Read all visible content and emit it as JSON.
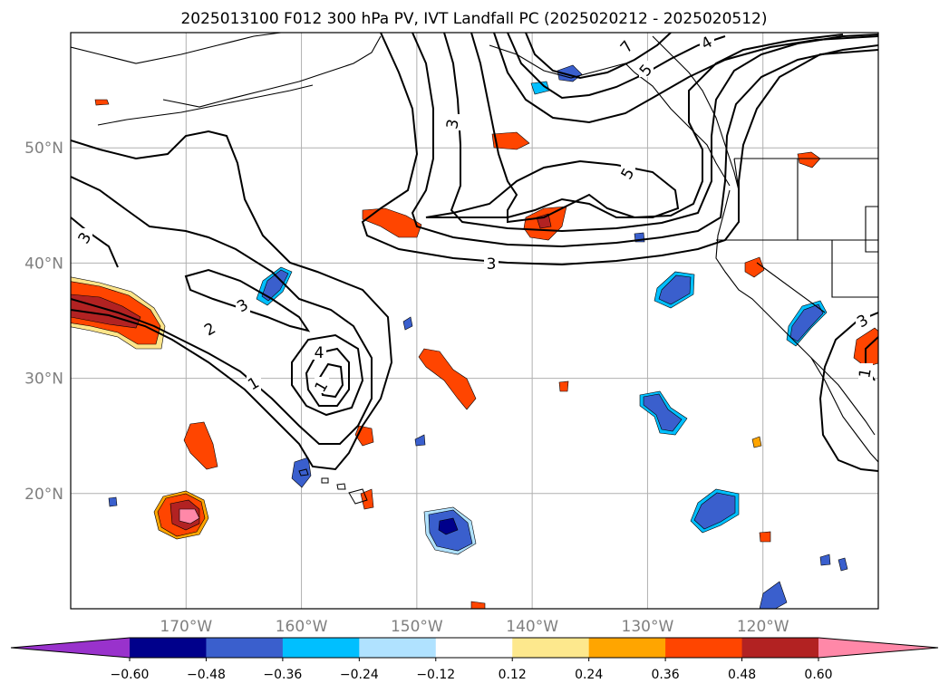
{
  "title": "2025013100 F012 300 hPa PV, IVT Landfall PC (2025020212 - 2025020512)",
  "map": {
    "lon_range": [
      -180,
      -110
    ],
    "lat_range": [
      10,
      60
    ],
    "lon_ticks": [
      {
        "lon": -170,
        "label": "170°W"
      },
      {
        "lon": -160,
        "label": "160°W"
      },
      {
        "lon": -150,
        "label": "150°W"
      },
      {
        "lon": -140,
        "label": "140°W"
      },
      {
        "lon": -130,
        "label": "130°W"
      },
      {
        "lon": -120,
        "label": "120°W"
      }
    ],
    "lat_ticks": [
      {
        "lat": 20,
        "label": "20°N"
      },
      {
        "lat": 30,
        "label": "30°N"
      },
      {
        "lat": 40,
        "label": "40°N"
      },
      {
        "lat": 50,
        "label": "50°N"
      }
    ],
    "grid": true,
    "contour_labels": [
      "1",
      "2",
      "3",
      "3",
      "4",
      "1",
      "3",
      "3",
      "5",
      "7",
      "5",
      "4",
      "3",
      "1"
    ]
  },
  "colorbar": {
    "colors": [
      "#9932cc",
      "#00008b",
      "#3a5fcd",
      "#00bfff",
      "#b0e2ff",
      "#ffffff",
      "#fde88d",
      "#ffa500",
      "#ff4500",
      "#b22222",
      "#ff88a8"
    ],
    "tick_labels": [
      "−0.60",
      "−0.48",
      "−0.36",
      "−0.24",
      "−0.12",
      "0.12",
      "0.24",
      "0.36",
      "0.48",
      "0.60"
    ]
  }
}
